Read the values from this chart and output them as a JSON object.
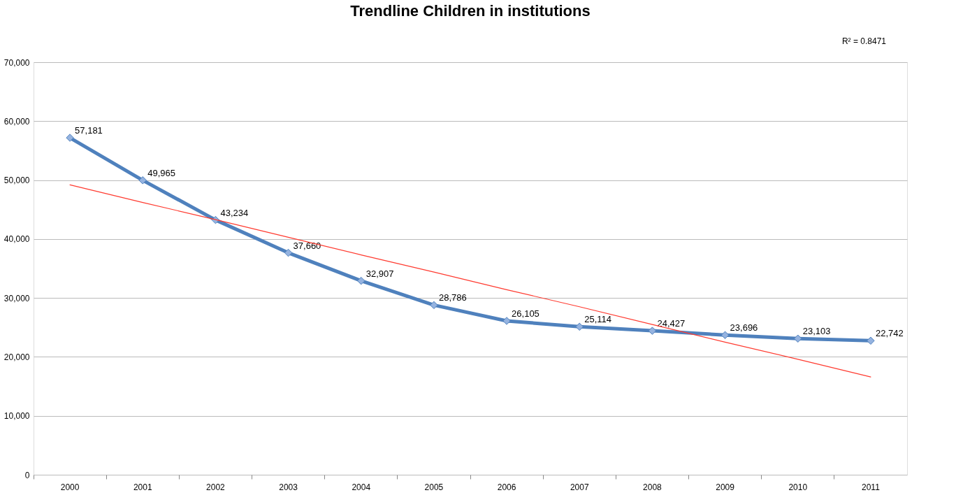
{
  "chart_data": {
    "type": "line",
    "title": "Trendline Children in institutions",
    "categories": [
      "2000",
      "2001",
      "2002",
      "2003",
      "2004",
      "2005",
      "2006",
      "2007",
      "2008",
      "2009",
      "2010",
      "2011"
    ],
    "series": [
      {
        "color": "#4f81bd",
        "marker": "diamond",
        "values": [
          57181,
          49965,
          43234,
          37660,
          32907,
          28786,
          26105,
          25114,
          24427,
          23696,
          23103,
          22742
        ],
        "value_labels": [
          "57,181",
          "49,965",
          "43,234",
          "37,660",
          "32,907",
          "28,786",
          "26,105",
          "25,114",
          "24,427",
          "23,696",
          "23,103",
          "22,742"
        ]
      },
      {
        "color": "#ff3b30",
        "marker": "none",
        "values": [
          49200,
          46200,
          43300,
          40300,
          37300,
          34400,
          31400,
          28500,
          25500,
          22500,
          19600,
          16600
        ]
      }
    ],
    "ylim": [
      0,
      70000
    ],
    "yticks": [
      0,
      {
        "value": 10000,
        "label": "10,000"
      },
      {
        "value": 20000,
        "label": "20,000"
      },
      {
        "value": 30000,
        "label": "30,000"
      },
      {
        "value": 40000,
        "label": "40,000"
      },
      {
        "value": 50000,
        "label": "50,000"
      },
      {
        "value": 60000,
        "label": "60,000"
      },
      {
        "value": 70000,
        "label": "70,000"
      }
    ],
    "grid": "y",
    "legend": false,
    "line_style": "solid",
    "annotations": [
      "R² = 0.8471"
    ]
  }
}
